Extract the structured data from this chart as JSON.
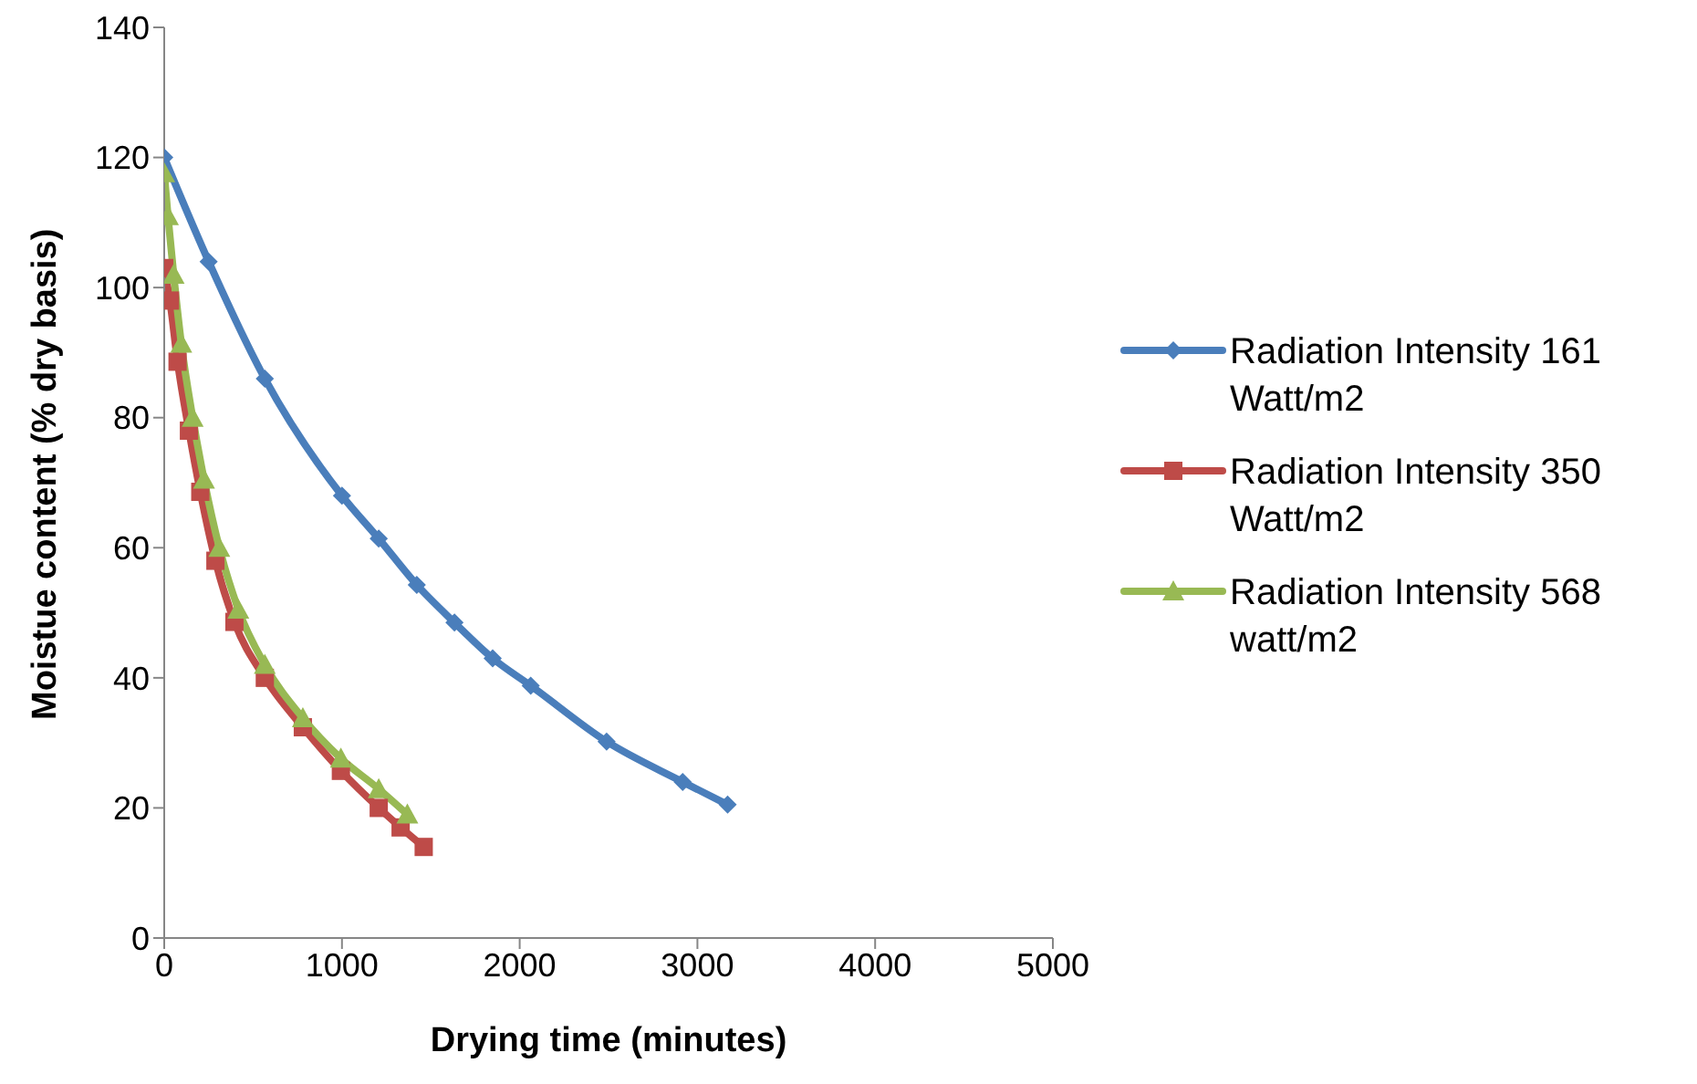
{
  "chart_data": {
    "type": "line",
    "xlabel": "Drying time (minutes)",
    "ylabel": "Moistue content (% dry basis)",
    "xlim": [
      0,
      5000
    ],
    "xticks": [
      0,
      1000,
      2000,
      3000,
      4000,
      5000
    ],
    "ylim": [
      0,
      140
    ],
    "yticks": [
      0,
      20,
      40,
      60,
      80,
      100,
      120,
      140
    ],
    "legend": "right",
    "series": [
      {
        "name": "Radiation Intensity 161 Watt/m2",
        "color": "#4a7ebb",
        "marker": "diamond",
        "x": [
          0,
          250,
          566,
          1000,
          1207,
          1421,
          1633,
          1848,
          2062,
          2489,
          2917,
          3170
        ],
        "values": [
          120,
          104,
          86,
          68,
          61.4,
          54.3,
          48.5,
          43,
          38.8,
          30.2,
          24,
          20.5
        ]
      },
      {
        "name": "Radiation Intensity 350 Watt/m2",
        "color": "#be4b48",
        "marker": "square",
        "x": [
          0,
          32,
          75,
          139,
          203,
          288,
          395,
          566,
          780,
          994,
          1207,
          1330,
          1460
        ],
        "values": [
          103,
          98,
          88.6,
          78,
          68.6,
          58,
          48.6,
          40,
          32.4,
          25.7,
          20,
          17,
          14
        ]
      },
      {
        "name": "Radiation Intensity 568 watt/m2",
        "color": "#98b954",
        "marker": "triangle",
        "x": [
          0,
          21,
          53,
          96,
          160,
          224,
          310,
          417,
          566,
          780,
          994,
          1207,
          1368
        ],
        "values": [
          117.6,
          111,
          102,
          91.4,
          80,
          70.5,
          60,
          50.5,
          42,
          33.8,
          27.6,
          22.9,
          19
        ]
      }
    ]
  }
}
